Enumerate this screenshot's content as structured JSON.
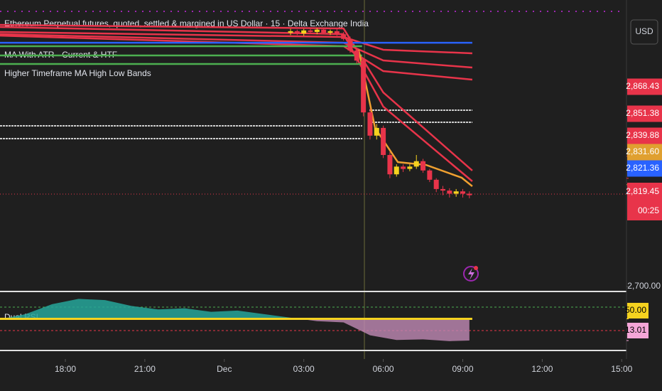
{
  "chart_data": [
    {
      "type": "candlestick",
      "title": "Ethereum Perpetual futures, quoted, settled & margined in US Dollar · 15 · Delta Exchange India",
      "indicators": [
        "MA With ATR - Current & HTF",
        "Higher Timeframe MA High Low Bands"
      ],
      "currency": "USD",
      "up_color": "#f5d21f",
      "down_color": "#e8344a",
      "xlim": [
        -2.47,
        21.2
      ],
      "xticks": [
        {
          "value": 0,
          "label": "18:00"
        },
        {
          "value": 3,
          "label": "21:00"
        },
        {
          "value": 6,
          "label": "Dec"
        },
        {
          "value": 9,
          "label": "03:00"
        },
        {
          "value": 12,
          "label": "06:00"
        },
        {
          "value": 15,
          "label": "09:00"
        },
        {
          "value": 18,
          "label": "12:00"
        },
        {
          "value": 21,
          "label": "15:00"
        }
      ],
      "ylim": [
        2698.2,
        3070.3
      ],
      "yticks": [
        {
          "value": 2700,
          "label": "2,700.00"
        }
      ],
      "x": [
        8.5,
        8.75,
        9.0,
        9.25,
        9.5,
        9.75,
        10.0,
        10.25,
        10.5,
        10.75,
        11.0,
        11.25,
        11.5,
        11.75,
        12.0,
        12.25,
        12.5,
        12.75,
        13.0,
        13.25,
        13.5,
        13.75,
        14.0,
        14.25,
        14.5,
        14.75,
        15.0,
        15.25
      ],
      "open": [
        3028,
        3030,
        3027,
        3031,
        3029,
        3032,
        3028,
        3030,
        3026,
        3020,
        3005,
        2992,
        2925,
        2895,
        2905,
        2870,
        2845,
        2855,
        2852,
        2855,
        2862,
        2850,
        2838,
        2826,
        2824,
        2820,
        2823,
        2820
      ],
      "high": [
        3033,
        3032,
        3033,
        3034,
        3034,
        3035,
        3032,
        3033,
        3029,
        3023,
        3008,
        2995,
        2930,
        2910,
        2908,
        2874,
        2858,
        2858,
        2858,
        2870,
        2865,
        2852,
        2840,
        2830,
        2827,
        2826,
        2826,
        2823
      ],
      "low": [
        3025,
        3025,
        3024,
        3027,
        3026,
        3026,
        3025,
        3024,
        3018,
        3002,
        2988,
        2920,
        2890,
        2890,
        2866,
        2840,
        2842,
        2848,
        2849,
        2852,
        2847,
        2835,
        2822,
        2818,
        2815,
        2816,
        2815,
        2814
      ],
      "close": [
        3030,
        3027,
        3031,
        3029,
        3032,
        3028,
        3030,
        3026,
        3020,
        3005,
        2992,
        2925,
        2895,
        2905,
        2870,
        2845,
        2855,
        2852,
        2855,
        2862,
        2850,
        2838,
        2826,
        2824,
        2820,
        2823,
        2820,
        2818
      ],
      "series": [
        {
          "color": "#e8344a",
          "x": [
            -2.47,
            10.5,
            12,
            15.36
          ],
          "values": [
            3038.1,
            3033.5,
            2950.8,
            2849.8
          ]
        },
        {
          "color": "#e8344a",
          "x": [
            -2.47,
            10.5,
            12,
            15.36
          ],
          "values": [
            3035.4,
            3026.2,
            2932.5,
            2836.0
          ]
        },
        {
          "color": "#e8344a",
          "x": [
            -2.47,
            10.5,
            12,
            15.36
          ],
          "values": [
            3028.9,
            3022.5,
            3006.0,
            3001.4
          ]
        },
        {
          "color": "#e8344a",
          "x": [
            -2.47,
            10.5,
            12,
            15.36
          ],
          "values": [
            3026.2,
            3015.1,
            2992.2,
            2983.0
          ]
        },
        {
          "color": "#e8344a",
          "x": [
            -2.47,
            10.5,
            12,
            15.36
          ],
          "values": [
            3024.3,
            3010.6,
            2978.4,
            2967.4
          ]
        },
        {
          "color": "#4caf50",
          "x": [
            -2.47,
            11.2
          ],
          "values": [
            3010.6,
            3010.6
          ]
        },
        {
          "color": "#4caf50",
          "x": [
            -2.47,
            11.2
          ],
          "values": [
            2998.6,
            2998.6
          ]
        },
        {
          "color": "#4caf50",
          "x": [
            -2.47,
            11.2
          ],
          "values": [
            2987.6,
            2987.6
          ]
        },
        {
          "color": "#2962ff",
          "x": [
            -2.47,
            15.36
          ],
          "values": [
            3015.1,
            3015.1
          ]
        },
        {
          "color": "#f0a030",
          "x": [
            11.07,
            11.69,
            12.55,
            13.62,
            14.96,
            15.36
          ],
          "values": [
            3006.0,
            2904.9,
            2860.8,
            2857.1,
            2840.6,
            2829.6
          ]
        }
      ],
      "price_labels": [
        {
          "value": 2868.43,
          "label": "2,868.43",
          "color": "#e8344a"
        },
        {
          "value": 2851.38,
          "label": "2,851.38",
          "color": "#e8344a"
        },
        {
          "value": 2839.88,
          "label": "2,839.88",
          "color": "#e8344a"
        },
        {
          "value": 2831.6,
          "label": "2,831.60",
          "color": "#e0a030"
        },
        {
          "value": 2821.36,
          "label": "2,821.36",
          "color": "#2962ff"
        },
        {
          "value": 2819.45,
          "label": "2,819.45",
          "color": "#e8344a"
        }
      ],
      "countdown": "00:25"
    },
    {
      "type": "line",
      "title": "Dual RSI",
      "xlim": [
        -2.47,
        21.2
      ],
      "ylim": [
        -2.7,
        94.2
      ],
      "x": [
        -2.4,
        -1.5,
        -0.5,
        0.5,
        1.5,
        2.5,
        3.5,
        4.5,
        5.5,
        6.5,
        7.5,
        8.5,
        9.5,
        10.5,
        11.5,
        12.5,
        13.5,
        14.5,
        15.25
      ],
      "series": [
        {
          "color": "#f5d21f",
          "x": [
            -2.47,
            15.36
          ],
          "values": [
            50,
            50
          ]
        },
        {
          "color": "#26a69a",
          "x": [
            -2.4,
            -1.5,
            -0.5,
            0.5,
            1.5,
            2.5,
            3.5,
            4.5,
            5.5,
            6.5,
            7.5,
            8.5,
            9.5,
            10.5,
            11.5,
            12.5,
            13.5,
            14.5,
            15.25
          ],
          "values": [
            50,
            58,
            75,
            84,
            82,
            72,
            66,
            68,
            62,
            64,
            58,
            52,
            46,
            44,
            22,
            14,
            15,
            12,
            13.01
          ]
        }
      ],
      "price_labels": [
        {
          "value": 50,
          "label": "50.00",
          "color": "#f5d21f"
        },
        {
          "value": 13.01,
          "label": "13.01",
          "color": "#f4a6d7"
        }
      ]
    }
  ]
}
